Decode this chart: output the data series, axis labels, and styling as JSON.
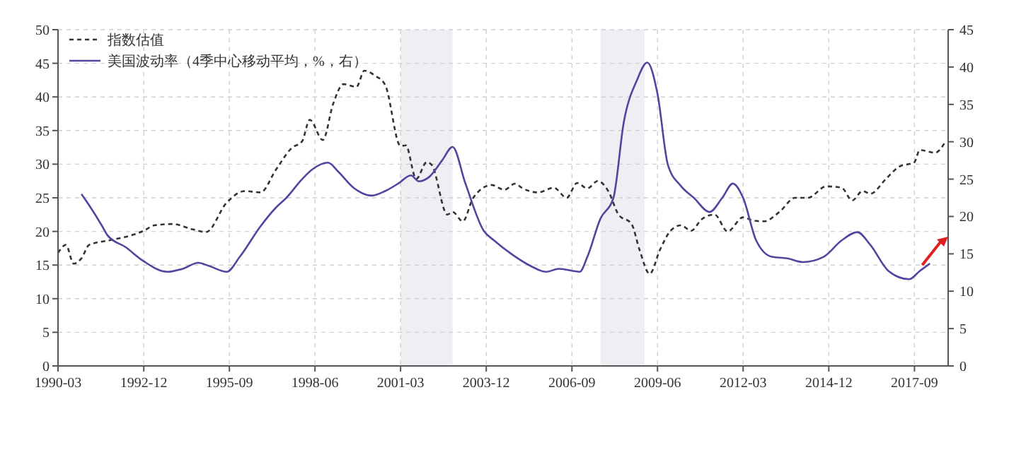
{
  "chart_data": {
    "type": "line",
    "xlim": [
      "1990-03",
      "2018-10"
    ],
    "xticks": [
      "1990-03",
      "1992-12",
      "1995-09",
      "1998-06",
      "2001-03",
      "2003-12",
      "2006-09",
      "2009-06",
      "2012-03",
      "2014-12",
      "2017-09"
    ],
    "ylim": [
      0,
      50
    ],
    "yticks": [
      0,
      5,
      10,
      15,
      20,
      25,
      30,
      35,
      40,
      45,
      50
    ],
    "y2lim": [
      0,
      45
    ],
    "y2ticks": [
      0,
      5,
      10,
      15,
      20,
      25,
      30,
      35,
      40,
      45
    ],
    "grid": true,
    "legend": "top left",
    "bands": [
      {
        "axis": "x",
        "from": "2001-03",
        "to": "2002-11",
        "color": "#eeeef3"
      },
      {
        "axis": "x",
        "from": "2007-08",
        "to": "2009-01",
        "color": "#eeeef3"
      }
    ],
    "series": [
      {
        "name": "指数估值",
        "color": "#333333",
        "line_style": "dashed",
        "x": [
          "1990-03",
          "1990-06",
          "1990-09",
          "1990-12",
          "1991-03",
          "1991-11",
          "1992-07",
          "1992-12",
          "1993-04",
          "1993-11",
          "1994-07",
          "1994-12",
          "1995-08",
          "1996-03",
          "1996-09",
          "1997-03",
          "1997-09",
          "1998-01",
          "1998-04",
          "1998-09",
          "1999-01",
          "1999-05",
          "1999-10",
          "2000-01",
          "2000-05",
          "2000-09",
          "2001-03",
          "2001-05",
          "2001-09",
          "2002-01",
          "2002-03",
          "2002-09",
          "2002-11",
          "2003-03",
          "2003-07",
          "2004-02",
          "2004-07",
          "2004-11",
          "2005-02",
          "2005-08",
          "2006-02",
          "2006-07",
          "2006-11",
          "2007-03",
          "2007-07",
          "2007-11",
          "2008-03",
          "2008-08",
          "2008-11",
          "2009-03",
          "2009-07",
          "2009-11",
          "2010-03",
          "2010-07",
          "2010-11",
          "2011-04",
          "2011-09",
          "2012-03",
          "2012-07",
          "2012-11",
          "2013-05",
          "2013-11",
          "2014-04",
          "2014-11",
          "2015-05",
          "2015-09",
          "2016-01",
          "2016-04",
          "2016-10",
          "2017-03",
          "2017-09",
          "2017-11",
          "2018-05",
          "2018-09"
        ],
        "values": [
          16.8,
          18.0,
          15.2,
          16.0,
          18.0,
          18.7,
          19.4,
          20.1,
          20.9,
          21.1,
          20.3,
          19.9,
          24.3,
          26.0,
          25.8,
          29.2,
          32.4,
          33.4,
          36.6,
          33.6,
          39.0,
          41.9,
          41.5,
          43.9,
          43.2,
          41.8,
          32.7,
          32.8,
          27.8,
          30.3,
          29.9,
          22.5,
          22.9,
          21.5,
          25.0,
          26.9,
          26.2,
          27.1,
          26.4,
          25.8,
          26.5,
          25.0,
          27.2,
          26.4,
          27.5,
          26.0,
          22.5,
          21.1,
          17.3,
          13.7,
          17.3,
          20.1,
          20.9,
          20.1,
          21.8,
          22.5,
          20.0,
          22.1,
          21.6,
          21.5,
          22.9,
          25.0,
          25.0,
          26.7,
          26.5,
          24.6,
          26.0,
          25.6,
          27.8,
          29.6,
          30.3,
          32.1,
          31.7,
          33.4
        ]
      },
      {
        "name": "美国波动率（4季中心移动平均，%，右）",
        "color": "#4f46a0",
        "line_style": "solid",
        "axis": "y2",
        "x": [
          "1990-12",
          "1991-03",
          "1991-08",
          "1991-10",
          "1992-05",
          "1992-12",
          "1993-09",
          "1994-03",
          "1994-09",
          "1995-01",
          "1995-08",
          "1996-01",
          "1996-09",
          "1997-03",
          "1997-07",
          "1998-01",
          "1998-05",
          "1998-11",
          "1999-03",
          "1999-09",
          "2000-04",
          "2000-09",
          "2001-02",
          "2001-07",
          "2001-10",
          "2002-02",
          "2002-07",
          "2002-11",
          "2003-04",
          "2003-11",
          "2004-03",
          "2004-10",
          "2005-05",
          "2005-11",
          "2006-04",
          "2006-12",
          "2007-03",
          "2007-08",
          "2008-01",
          "2008-05",
          "2008-10",
          "2009-02",
          "2009-06",
          "2009-10",
          "2010-03",
          "2010-08",
          "2011-02",
          "2011-07",
          "2011-11",
          "2012-03",
          "2012-08",
          "2013-02",
          "2013-08",
          "2014-02",
          "2014-10",
          "2015-05",
          "2015-11",
          "2016-04",
          "2016-11",
          "2017-07",
          "2017-11",
          "2018-03"
        ],
        "values": [
          23.0,
          21.5,
          18.7,
          17.5,
          15.9,
          14.0,
          12.6,
          13.0,
          13.8,
          13.4,
          12.6,
          14.6,
          18.7,
          21.2,
          22.5,
          25.0,
          26.3,
          27.2,
          26.0,
          23.8,
          22.8,
          23.4,
          24.4,
          25.5,
          24.7,
          25.3,
          27.5,
          29.3,
          24.4,
          18.1,
          16.8,
          14.9,
          13.4,
          12.6,
          13.0,
          12.6,
          14.6,
          19.7,
          22.5,
          32.6,
          38.2,
          40.6,
          36.4,
          26.9,
          24.1,
          22.5,
          20.6,
          22.5,
          24.4,
          22.5,
          16.8,
          14.6,
          14.4,
          13.9,
          14.6,
          16.8,
          17.9,
          16.2,
          12.7,
          11.6,
          12.7,
          13.7
        ]
      }
    ]
  }
}
